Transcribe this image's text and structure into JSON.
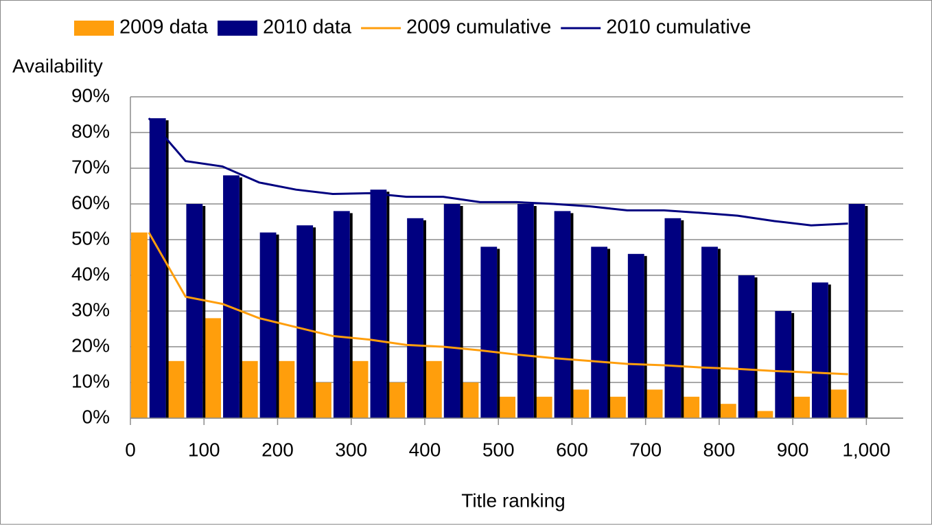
{
  "chart_data": {
    "type": "bar",
    "x_label": "Title ranking",
    "y_label": "Availability",
    "x": [
      25,
      75,
      125,
      175,
      225,
      275,
      325,
      375,
      425,
      475,
      525,
      575,
      625,
      675,
      725,
      775,
      825,
      875,
      925,
      975
    ],
    "series": [
      {
        "name": "2009 data",
        "type": "bar",
        "color": "#ff9e0c",
        "values": [
          52,
          16,
          28,
          16,
          16,
          10,
          16,
          10,
          16,
          10,
          6,
          6,
          8,
          6,
          8,
          6,
          4,
          2,
          6,
          8
        ]
      },
      {
        "name": "2010 data",
        "type": "bar",
        "color": "#000080",
        "values": [
          84,
          60,
          68,
          52,
          54,
          58,
          64,
          56,
          60,
          48,
          60,
          58,
          48,
          46,
          56,
          48,
          40,
          30,
          38,
          60
        ]
      },
      {
        "name": "2009 cumulative",
        "type": "line",
        "color": "#ff9e0c",
        "values": [
          52,
          34,
          32,
          28,
          25.5,
          23,
          22,
          20.5,
          20,
          19,
          17.8,
          16.8,
          16,
          15.2,
          14.8,
          14.2,
          13.8,
          13.2,
          12.8,
          12.3
        ]
      },
      {
        "name": "2010 cumulative",
        "type": "line",
        "color": "#000080",
        "values": [
          84,
          72,
          70.5,
          66,
          64,
          62.8,
          63,
          62,
          62,
          60.5,
          60.5,
          60,
          59.3,
          58.2,
          58.2,
          57.5,
          56.7,
          55.2,
          54,
          54.5
        ]
      }
    ],
    "xlim": [
      0,
      1050
    ],
    "xticks": [
      0,
      100,
      200,
      300,
      400,
      500,
      600,
      700,
      800,
      900,
      {
        "value": 1000,
        "label": "1,000"
      }
    ],
    "ylim": [
      0,
      90
    ],
    "yticks": [
      {
        "value": 0,
        "label": "0%"
      },
      {
        "value": 10,
        "label": "10%"
      },
      {
        "value": 20,
        "label": "20%"
      },
      {
        "value": 30,
        "label": "30%"
      },
      {
        "value": 40,
        "label": "40%"
      },
      {
        "value": 50,
        "label": "50%"
      },
      {
        "value": 60,
        "label": "60%"
      },
      {
        "value": 70,
        "label": "70%"
      },
      {
        "value": 80,
        "label": "80%"
      },
      {
        "value": 90,
        "label": "90%"
      }
    ],
    "grid": true,
    "legend": "top"
  }
}
